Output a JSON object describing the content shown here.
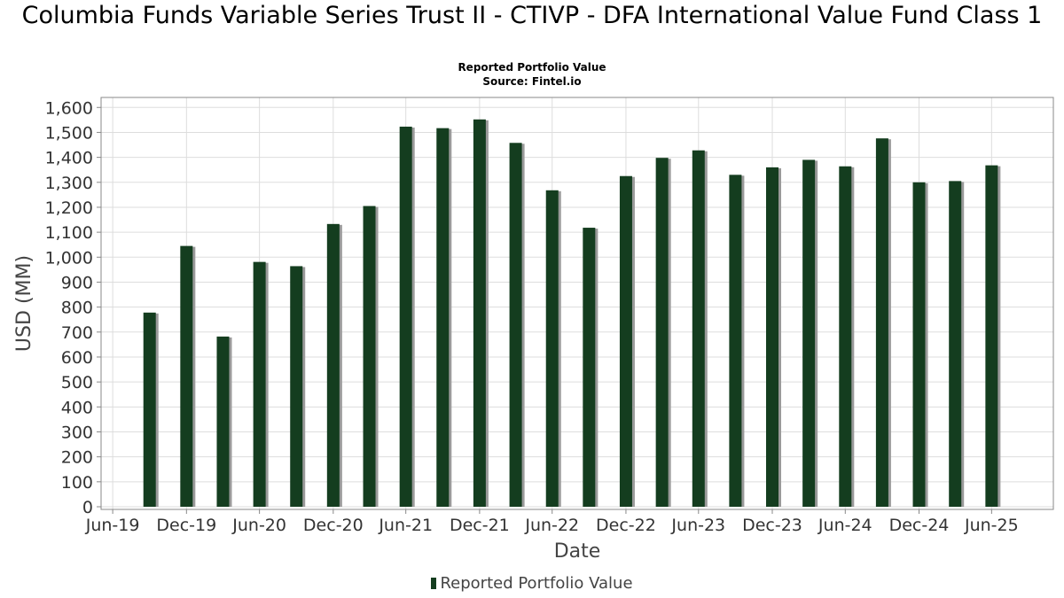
{
  "chart_data": {
    "type": "bar",
    "title": "Columbia Funds Variable Series Trust II - CTIVP - DFA International Value Fund Class 1",
    "subtitle_lines": [
      "Reported Portfolio Value",
      "Source: Fintel.io"
    ],
    "xlabel": "Date",
    "ylabel": "USD (MM)",
    "ylim": [
      0,
      1640
    ],
    "yticks": [
      0,
      100,
      200,
      300,
      400,
      500,
      600,
      700,
      800,
      900,
      1000,
      1100,
      1200,
      1300,
      1400,
      1500,
      1600
    ],
    "xlim": [
      "2019-06-01",
      "2025-12-01"
    ],
    "xticks": [
      {
        "date": "2019-06-30",
        "label": "Jun-19"
      },
      {
        "date": "2019-12-31",
        "label": "Dec-19"
      },
      {
        "date": "2020-06-30",
        "label": "Jun-20"
      },
      {
        "date": "2020-12-31",
        "label": "Dec-20"
      },
      {
        "date": "2021-06-30",
        "label": "Jun-21"
      },
      {
        "date": "2021-12-31",
        "label": "Dec-21"
      },
      {
        "date": "2022-06-30",
        "label": "Jun-22"
      },
      {
        "date": "2022-12-31",
        "label": "Dec-22"
      },
      {
        "date": "2023-06-30",
        "label": "Jun-23"
      },
      {
        "date": "2023-12-31",
        "label": "Dec-23"
      },
      {
        "date": "2024-06-30",
        "label": "Jun-24"
      },
      {
        "date": "2024-12-31",
        "label": "Dec-24"
      },
      {
        "date": "2025-06-30",
        "label": "Jun-25"
      }
    ],
    "grid": true,
    "legend_position": "bottom-center",
    "series": [
      {
        "name": "Reported Portfolio Value",
        "color": "#143d1f",
        "points": [
          {
            "date": "2019-09-30",
            "value": 778
          },
          {
            "date": "2019-12-31",
            "value": 1045
          },
          {
            "date": "2020-03-31",
            "value": 682
          },
          {
            "date": "2020-06-30",
            "value": 981
          },
          {
            "date": "2020-09-30",
            "value": 964
          },
          {
            "date": "2020-12-31",
            "value": 1133
          },
          {
            "date": "2021-03-31",
            "value": 1205
          },
          {
            "date": "2021-06-30",
            "value": 1523
          },
          {
            "date": "2021-09-30",
            "value": 1517
          },
          {
            "date": "2021-12-31",
            "value": 1552
          },
          {
            "date": "2022-03-31",
            "value": 1458
          },
          {
            "date": "2022-06-30",
            "value": 1268
          },
          {
            "date": "2022-09-30",
            "value": 1118
          },
          {
            "date": "2022-12-31",
            "value": 1325
          },
          {
            "date": "2023-03-31",
            "value": 1398
          },
          {
            "date": "2023-06-30",
            "value": 1428
          },
          {
            "date": "2023-09-30",
            "value": 1330
          },
          {
            "date": "2023-12-31",
            "value": 1360
          },
          {
            "date": "2024-03-31",
            "value": 1390
          },
          {
            "date": "2024-06-30",
            "value": 1364
          },
          {
            "date": "2024-09-30",
            "value": 1476
          },
          {
            "date": "2024-12-31",
            "value": 1300
          },
          {
            "date": "2025-03-31",
            "value": 1305
          },
          {
            "date": "2025-06-30",
            "value": 1368
          }
        ]
      }
    ]
  }
}
